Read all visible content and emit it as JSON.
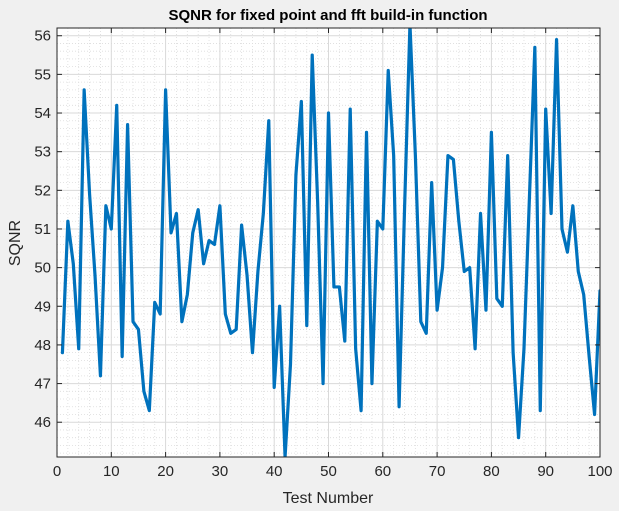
{
  "chart_data": {
    "type": "line",
    "title": "SQNR for fixed point and fft build-in function",
    "xlabel": "Test Number",
    "ylabel": "SQNR",
    "xlim": [
      0,
      100
    ],
    "ylim": [
      45.1,
      56.2
    ],
    "xticks": [
      "0",
      "10",
      "20",
      "30",
      "40",
      "50",
      "60",
      "70",
      "80",
      "90",
      "100"
    ],
    "yticks": [
      "46",
      "47",
      "48",
      "49",
      "50",
      "51",
      "52",
      "53",
      "54",
      "55",
      "56"
    ],
    "grid": true,
    "minor_grid": true,
    "line_color": "#0072bd",
    "series": [
      {
        "x": [
          1,
          2,
          3,
          4,
          5,
          6,
          7,
          8,
          9,
          10,
          11,
          12,
          13,
          14,
          15,
          16,
          17,
          18,
          19,
          20,
          21,
          22,
          23,
          24,
          25,
          26,
          27,
          28,
          29,
          30,
          31,
          32,
          33,
          34,
          35,
          36,
          37,
          38,
          39,
          40,
          41,
          42,
          43,
          44,
          45,
          46,
          47,
          48,
          49,
          50,
          51,
          52,
          53,
          54,
          55,
          56,
          57,
          58,
          59,
          60,
          61,
          62,
          63,
          64,
          65,
          66,
          67,
          68,
          69,
          70,
          71,
          72,
          73,
          74,
          75,
          76,
          77,
          78,
          79,
          80,
          81,
          82,
          83,
          84,
          85,
          86,
          87,
          88,
          89,
          90,
          91,
          92,
          93,
          94,
          95,
          96,
          97,
          98,
          99,
          100
        ],
        "values": [
          47.8,
          51.2,
          50.1,
          47.9,
          54.6,
          51.9,
          49.8,
          47.2,
          51.6,
          51.0,
          54.2,
          47.7,
          53.7,
          48.6,
          48.4,
          46.8,
          46.3,
          49.1,
          48.8,
          54.6,
          50.9,
          51.4,
          48.6,
          49.3,
          50.9,
          51.5,
          50.1,
          50.7,
          50.6,
          51.6,
          48.8,
          48.3,
          48.4,
          51.1,
          49.8,
          47.8,
          49.9,
          51.4,
          53.8,
          46.9,
          49.0,
          45.1,
          47.5,
          52.4,
          54.3,
          48.5,
          55.5,
          51.7,
          47.0,
          54.0,
          49.5,
          49.5,
          48.1,
          54.1,
          47.9,
          46.3,
          53.5,
          47.0,
          51.2,
          51.0,
          55.1,
          52.9,
          46.4,
          51.5,
          56.3,
          52.9,
          48.6,
          48.3,
          52.2,
          48.9,
          50.0,
          52.9,
          52.8,
          51.2,
          49.9,
          50.0,
          47.9,
          51.4,
          48.9,
          53.5,
          49.2,
          49.0,
          52.9,
          47.8,
          45.6,
          47.9,
          51.8,
          55.7,
          46.3,
          54.1,
          51.4,
          55.9,
          51.0,
          50.4,
          51.6,
          49.9,
          49.3,
          47.7,
          46.2,
          49.4
        ]
      }
    ]
  }
}
